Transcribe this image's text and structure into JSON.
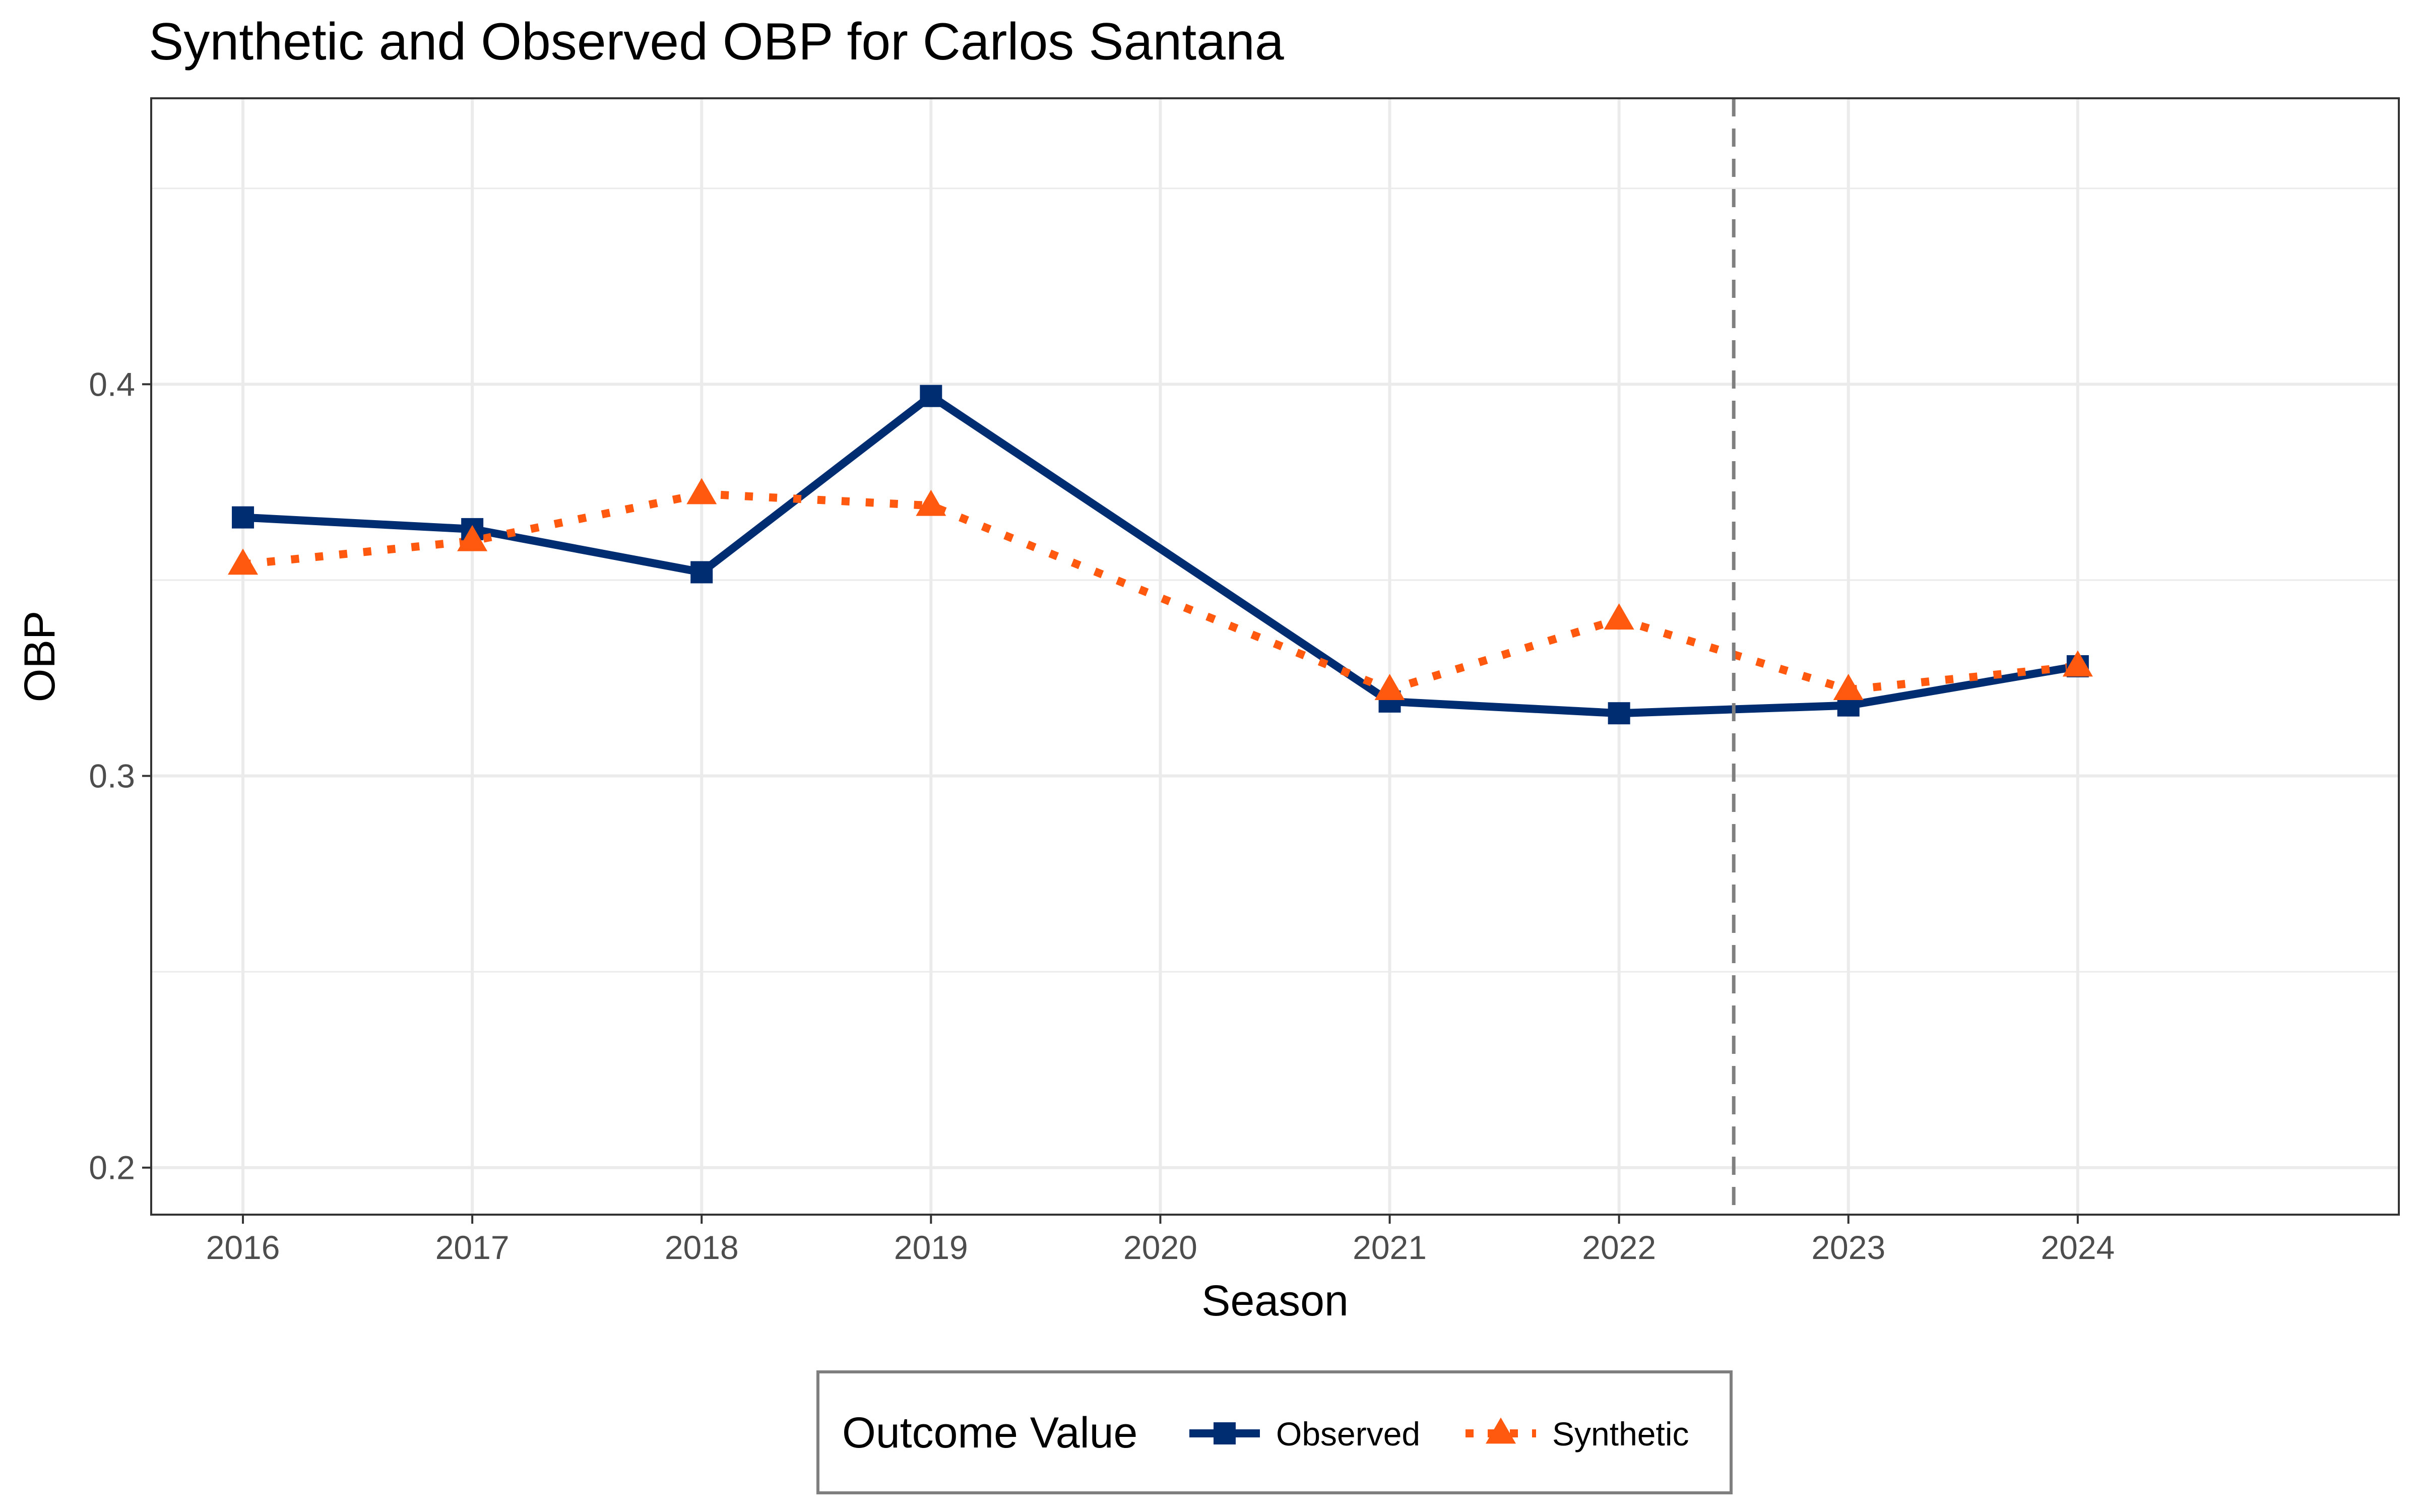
{
  "chart_data": {
    "type": "line",
    "title": "Synthetic and Observed OBP for Carlos Santana",
    "xlabel": "Season",
    "ylabel": "OBP",
    "x": [
      2016,
      2017,
      2018,
      2019,
      2020,
      2021,
      2022,
      2023,
      2024
    ],
    "xlim": [
      2015.6,
      2025.4
    ],
    "ylim": [
      0.188,
      0.473
    ],
    "y_ticks": [
      0.2,
      0.3,
      0.4
    ],
    "y_tick_labels": [
      "0.2",
      "0.3",
      "0.4"
    ],
    "x_tick_labels": [
      "2016",
      "2017",
      "2018",
      "2019",
      "2020",
      "2021",
      "2022",
      "2023",
      "2024"
    ],
    "grid": true,
    "vline": {
      "x": 2022.5,
      "style": "dashed",
      "color": "#7f7f7f"
    },
    "series": [
      {
        "name": "Observed",
        "x": [
          2016,
          2017,
          2018,
          2019,
          2021,
          2022,
          2023,
          2024
        ],
        "values": [
          0.366,
          0.363,
          0.352,
          0.397,
          0.319,
          0.316,
          0.318,
          0.328
        ],
        "color": "#002D72",
        "line": "solid",
        "marker": "square"
      },
      {
        "name": "Synthetic",
        "x": [
          2016,
          2017,
          2018,
          2019,
          2021,
          2022,
          2023,
          2024
        ],
        "values": [
          0.354,
          0.36,
          0.372,
          0.369,
          0.322,
          0.34,
          0.322,
          0.328
        ],
        "color": "#FF5910",
        "line": "dotted",
        "marker": "triangle"
      }
    ],
    "legend": {
      "title": "Outcome Value",
      "position": "bottom"
    }
  }
}
